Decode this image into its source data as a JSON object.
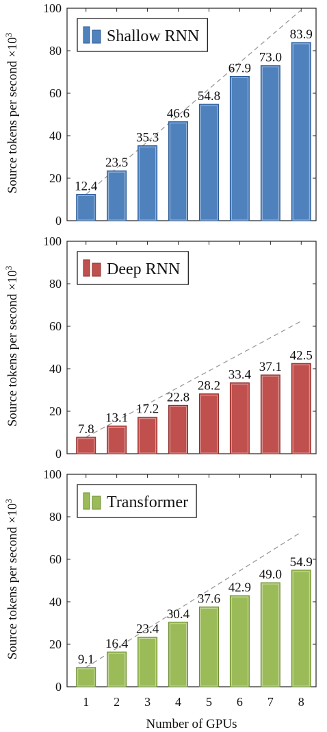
{
  "chart_data": [
    {
      "type": "bar",
      "legend": "Shallow RNN",
      "legend_position": "top-left",
      "color": "#4F81BD",
      "edge_color": "#2D5C96",
      "categories": [
        "1",
        "2",
        "3",
        "4",
        "5",
        "6",
        "7",
        "8"
      ],
      "values": [
        12.4,
        23.5,
        35.3,
        46.6,
        54.8,
        67.9,
        73.0,
        83.9
      ],
      "value_labels": [
        "12.4",
        "23.5",
        "35.3",
        "46.6",
        "54.8",
        "67.9",
        "73.0",
        "83.9"
      ],
      "ideal_linear_scaling": [
        12.4,
        24.8,
        37.2,
        49.6,
        62.0,
        74.4,
        86.8,
        99.2
      ],
      "ylabel": "Source tokens per second ×10³",
      "xlabel": "",
      "ylim": [
        0,
        100
      ],
      "yticks": [
        0,
        20,
        40,
        60,
        80,
        100
      ],
      "grid": false
    },
    {
      "type": "bar",
      "legend": "Deep RNN",
      "legend_position": "top-left",
      "color": "#C0504D",
      "edge_color": "#8E2E2B",
      "categories": [
        "1",
        "2",
        "3",
        "4",
        "5",
        "6",
        "7",
        "8"
      ],
      "values": [
        7.8,
        13.1,
        17.2,
        22.8,
        28.2,
        33.4,
        37.1,
        42.5
      ],
      "value_labels": [
        "7.8",
        "13.1",
        "17.2",
        "22.8",
        "28.2",
        "33.4",
        "37.1",
        "42.5"
      ],
      "ideal_linear_scaling": [
        7.8,
        15.6,
        23.4,
        31.2,
        39.0,
        46.8,
        54.6,
        62.4
      ],
      "ylabel": "Source tokens per second ×10³",
      "xlabel": "",
      "ylim": [
        0,
        100
      ],
      "yticks": [
        0,
        20,
        40,
        60,
        80,
        100
      ],
      "grid": false
    },
    {
      "type": "bar",
      "legend": "Transformer",
      "legend_position": "top-left",
      "color": "#9BBB59",
      "edge_color": "#6E8E32",
      "categories": [
        "1",
        "2",
        "3",
        "4",
        "5",
        "6",
        "7",
        "8"
      ],
      "values": [
        9.1,
        16.4,
        23.4,
        30.4,
        37.6,
        42.9,
        49.0,
        54.9
      ],
      "value_labels": [
        "9.1",
        "16.4",
        "23.4",
        "30.4",
        "37.6",
        "42.9",
        "49.0",
        "54.9"
      ],
      "ideal_linear_scaling": [
        9.1,
        18.2,
        27.3,
        36.4,
        45.5,
        54.6,
        63.7,
        72.8
      ],
      "ylabel": "Source tokens per second ×10³",
      "xlabel": "Number of GPUs",
      "ylim": [
        0,
        100
      ],
      "yticks": [
        0,
        20,
        40,
        60,
        80,
        100
      ],
      "grid": false
    }
  ],
  "colors": {
    "axis": "#222222",
    "ideal_line": "#9a9a9a"
  }
}
